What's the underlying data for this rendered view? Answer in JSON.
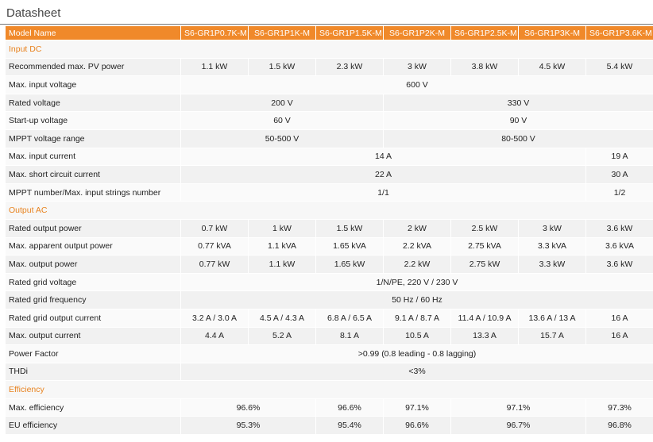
{
  "title": "Datasheet",
  "table": {
    "header": [
      "Model Name",
      "S6-GR1P0.7K-M",
      "S6-GR1P1K-M",
      "S6-GR1P1.5K-M",
      "S6-GR1P2K-M",
      "S6-GR1P2.5K-M",
      "S6-GR1P3K-M",
      "S6-GR1P3.6K-M"
    ],
    "sections": [
      {
        "title": "Input DC",
        "rows": [
          {
            "label": "Recommended max. PV power",
            "cells": [
              "1.1 kW",
              "1.5 kW",
              "2.3 kW",
              "3 kW",
              "3.8 kW",
              "4.5 kW",
              "5.4 kW"
            ]
          },
          {
            "label": "Max. input voltage",
            "cells": [
              "600 V"
            ]
          },
          {
            "label": "Rated voltage",
            "cells": [
              "200 V",
              "330 V"
            ]
          },
          {
            "label": "Start-up voltage",
            "cells": [
              "60 V",
              "90 V"
            ]
          },
          {
            "label": "MPPT voltage range",
            "cells": [
              "50-500 V",
              "80-500 V"
            ]
          },
          {
            "label": "Max. input current",
            "cells": [
              "14 A",
              "19 A"
            ]
          },
          {
            "label": "Max. short circuit current",
            "cells": [
              "22 A",
              "30 A"
            ]
          },
          {
            "label": "MPPT number/Max. input strings number",
            "cells": [
              "1/1",
              "1/2"
            ]
          }
        ]
      },
      {
        "title": "Output AC",
        "rows": [
          {
            "label": "Rated output power",
            "cells": [
              "0.7 kW",
              "1 kW",
              "1.5 kW",
              "2 kW",
              "2.5 kW",
              "3 kW",
              "3.6 kW"
            ]
          },
          {
            "label": "Max. apparent output power",
            "cells": [
              "0.77 kVA",
              "1.1 kVA",
              "1.65 kVA",
              "2.2 kVA",
              "2.75 kVA",
              "3.3 kVA",
              "3.6 kVA"
            ]
          },
          {
            "label": "Max. output power",
            "cells": [
              "0.77 kW",
              "1.1 kW",
              "1.65 kW",
              "2.2 kW",
              "2.75 kW",
              "3.3 kW",
              "3.6 kW"
            ]
          },
          {
            "label": "Rated grid voltage",
            "cells": [
              "1/N/PE, 220 V / 230 V"
            ]
          },
          {
            "label": "Rated grid frequency",
            "cells": [
              "50 Hz / 60 Hz"
            ]
          },
          {
            "label": "Rated grid output current",
            "cells": [
              "3.2 A / 3.0 A",
              "4.5 A / 4.3 A",
              "6.8 A / 6.5 A",
              "9.1 A / 8.7 A",
              "11.4 A / 10.9 A",
              "13.6 A / 13 A",
              "16 A"
            ]
          },
          {
            "label": "Max. output current",
            "cells": [
              "4.4 A",
              "5.2 A",
              "8.1 A",
              "10.5 A",
              "13.3 A",
              "15.7 A",
              "16 A"
            ]
          },
          {
            "label": "Power Factor",
            "cells": [
              ">0.99 (0.8 leading - 0.8 lagging)"
            ]
          },
          {
            "label": "THDi",
            "cells": [
              "<3%"
            ]
          }
        ]
      },
      {
        "title": "Efficiency",
        "rows": [
          {
            "label": "Max. efficiency",
            "cells": [
              "96.6%",
              "96.6%",
              "97.1%",
              "97.1%",
              "97.3%"
            ]
          },
          {
            "label": "EU efficiency",
            "cells": [
              "95.3%",
              "95.4%",
              "96.6%",
              "96.7%",
              "96.8%"
            ]
          }
        ]
      }
    ]
  }
}
